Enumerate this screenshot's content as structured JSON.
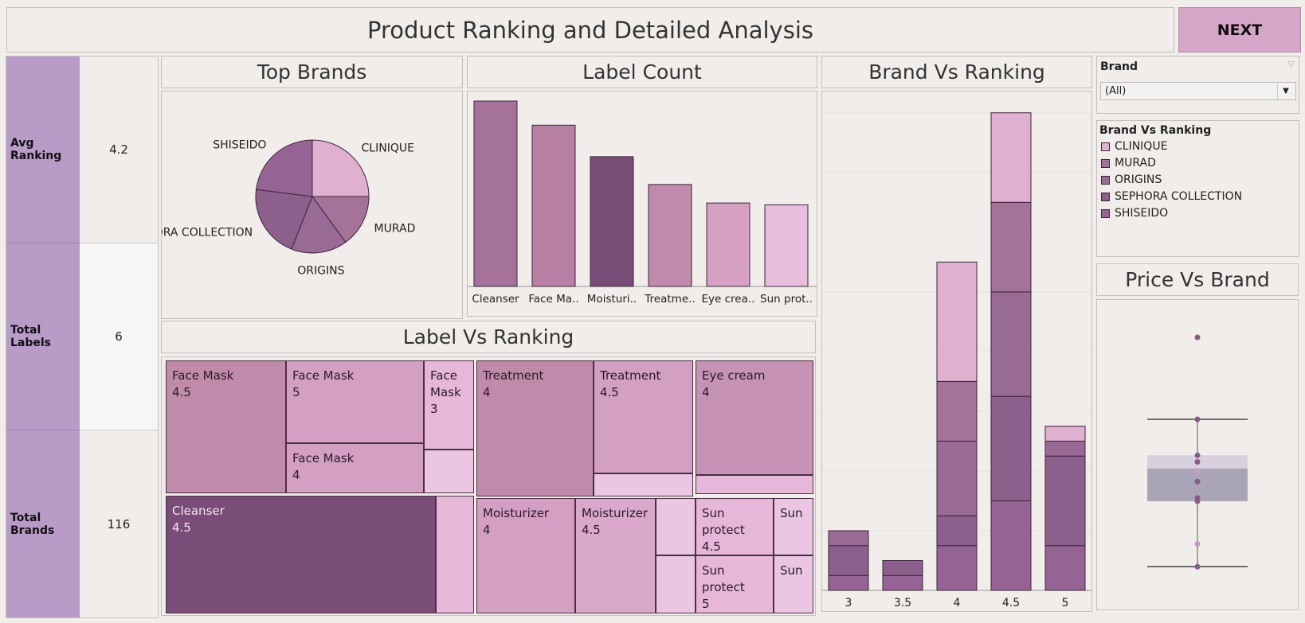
{
  "header": {
    "title": "Product Ranking and Detailed Analysis",
    "next_label": "NEXT"
  },
  "kpis": [
    {
      "label": "Avg Ranking",
      "value": "4.2"
    },
    {
      "label": "Total Labels",
      "value": "6"
    },
    {
      "label": "Total Brands",
      "value": "116"
    }
  ],
  "sections": {
    "top_brands": "Top Brands",
    "label_count": "Label Count",
    "label_vs_ranking": "Label Vs Ranking",
    "brand_vs_ranking": "Brand Vs Ranking",
    "price_vs_brand": "Price Vs Brand"
  },
  "filter": {
    "title": "Brand",
    "value": "(All)"
  },
  "legend": {
    "title": "Brand Vs Ranking",
    "items": [
      {
        "name": "CLINIQUE",
        "color": "#dfb0cf"
      },
      {
        "name": "MURAD",
        "color": "#a5729a"
      },
      {
        "name": "ORIGINS",
        "color": "#9a6a96"
      },
      {
        "name": "SEPHORA COLLECTION",
        "color": "#8c5f8c"
      },
      {
        "name": "SHISEIDO",
        "color": "#966494"
      }
    ]
  },
  "colors": {
    "accent": "#b99bc8",
    "next": "#d5a6c7",
    "pie_clinique": "#dfb0cf",
    "pie_murad": "#a5729a",
    "pie_origins": "#9a6a96",
    "pie_sephora": "#8c5f8c",
    "pie_shiseido": "#966494"
  },
  "treemap": [
    {
      "label": "Face Mask",
      "value": "4.5",
      "color": "#c08aab"
    },
    {
      "label": "Face Mask",
      "value": "5",
      "color": "#d39fc2"
    },
    {
      "label": "Face Mask",
      "value": "3",
      "color": "#e6b7d8"
    },
    {
      "label": "Face Mask",
      "value": "4",
      "color": "#d39fc2"
    },
    {
      "label": "",
      "value": "",
      "color": "#ebc6e2"
    },
    {
      "label": "Cleanser",
      "value": "4.5",
      "color": "#7a4d78"
    },
    {
      "label": "",
      "value": "",
      "color": "#e6b7d8"
    },
    {
      "label": "Treatment",
      "value": "4",
      "color": "#c08aab"
    },
    {
      "label": "Treatment",
      "value": "4.5",
      "color": "#d39fc2"
    },
    {
      "label": "",
      "value": "",
      "color": "#ebc6e2"
    },
    {
      "label": "Eye cream",
      "value": "4",
      "color": "#c692b5"
    },
    {
      "label": "",
      "value": "",
      "color": "#e6b7d8"
    },
    {
      "label": "Moisturizer",
      "value": "4",
      "color": "#d39fc2"
    },
    {
      "label": "Moisturizer",
      "value": "4.5",
      "color": "#d9a8cb"
    },
    {
      "label": "",
      "value": "",
      "color": "#ebc6e2"
    },
    {
      "label": "",
      "value": "",
      "color": "#ebc6e2"
    },
    {
      "label": "Sun protect",
      "value": "4.5",
      "color": "#e6b7d8"
    },
    {
      "label": "Sun",
      "value": "",
      "color": "#ebc6e2"
    },
    {
      "label": "Sun protect",
      "value": "5",
      "color": "#e6b7d8"
    },
    {
      "label": "Sun",
      "value": "",
      "color": "#ebc6e2"
    }
  ],
  "chart_data": [
    {
      "type": "pie",
      "title": "Top Brands",
      "slices": [
        {
          "label": "CLINIQUE",
          "value": 25
        },
        {
          "label": "MURAD",
          "value": 15
        },
        {
          "label": "ORIGINS",
          "value": 16
        },
        {
          "label": "SEPHORA COLLECTION",
          "value": 21
        },
        {
          "label": "SHISEIDO",
          "value": 23
        }
      ]
    },
    {
      "type": "bar",
      "title": "Label Count",
      "categories": [
        "Cleanser",
        "Face Ma..",
        "Moisturi..",
        "Treatme..",
        "Eye crea..",
        "Sun prot.."
      ],
      "values": [
        100,
        87,
        70,
        55,
        45,
        44
      ],
      "colors": [
        "#a5729a",
        "#b880a5",
        "#7a4d78",
        "#c08aab",
        "#d5a0c2",
        "#e8bedc"
      ]
    },
    {
      "type": "bar",
      "stacked": true,
      "title": "Brand Vs Ranking",
      "categories": [
        "3",
        "3.5",
        "4",
        "4.5",
        "5"
      ],
      "series": [
        {
          "name": "SHISEIDO",
          "values": [
            1,
            1,
            3,
            6,
            3
          ]
        },
        {
          "name": "SEPHORA COLLECTION",
          "values": [
            2,
            1,
            2,
            7,
            6
          ]
        },
        {
          "name": "ORIGINS",
          "values": [
            1,
            0,
            5,
            7,
            1
          ]
        },
        {
          "name": "MURAD",
          "values": [
            0,
            0,
            4,
            6,
            0
          ]
        },
        {
          "name": "CLINIQUE",
          "values": [
            0,
            0,
            8,
            6,
            1
          ]
        }
      ],
      "ylim": [
        0,
        33
      ]
    },
    {
      "type": "scatter",
      "title": "Price Vs Brand",
      "values": [
        86,
        61,
        50,
        48,
        45,
        42,
        37,
        36,
        23,
        16
      ],
      "box": {
        "whisker_high": 61,
        "q3": 50,
        "median": 46,
        "q1": 36,
        "whisker_low": 16
      },
      "ylim": [
        10,
        95
      ]
    }
  ]
}
